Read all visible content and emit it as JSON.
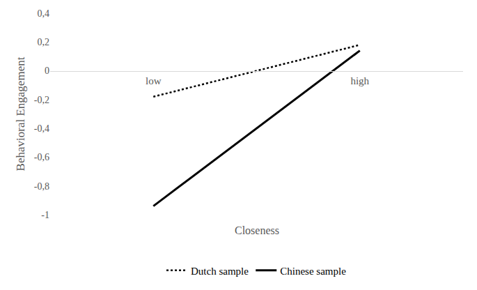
{
  "chart_data": {
    "type": "line",
    "y_label": "Behavioral Engagement",
    "x_label": "Closeness",
    "categories": [
      "low",
      "high"
    ],
    "series": [
      {
        "name": "Dutch sample",
        "color": "#000000",
        "line_style": "dotted",
        "values": [
          -0.18,
          0.18
        ]
      },
      {
        "name": "Chinese sample",
        "color": "#000000",
        "line_style": "solid",
        "values": [
          -0.94,
          0.14
        ]
      }
    ],
    "ylim": [
      -1,
      0.4
    ],
    "yticks": [
      -1,
      {
        "value": -0.8,
        "label": "-0,8"
      },
      {
        "value": -0.6,
        "label": "-0,6"
      },
      {
        "value": -0.4,
        "label": "-0,4"
      },
      {
        "value": -0.2,
        "label": "-0,2"
      },
      0,
      {
        "value": 0.2,
        "label": "0,2"
      },
      {
        "value": 0.4,
        "label": "0,4"
      }
    ],
    "grid": false,
    "legend": "bottom"
  }
}
